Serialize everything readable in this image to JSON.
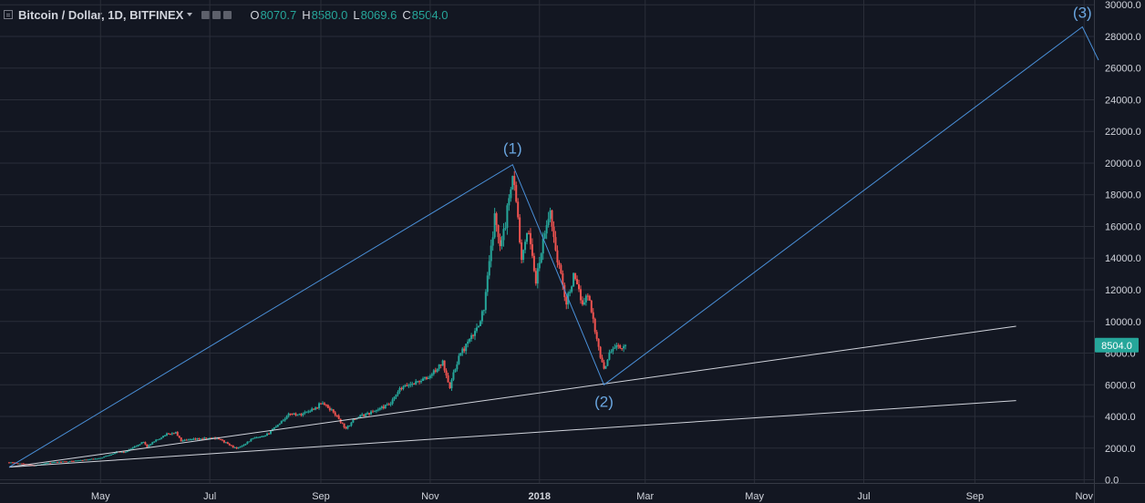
{
  "header": {
    "symbol": "Bitcoin / Dollar, 1D, BITFINEX",
    "ohlc": {
      "o_label": "O",
      "o_value": "8070.7",
      "h_label": "H",
      "h_value": "8580.0",
      "l_label": "L",
      "l_value": "8069.6",
      "c_label": "C",
      "c_value": "8504.0"
    }
  },
  "colors": {
    "background": "#131722",
    "grid": "#2a2e39",
    "up": "#26a69a",
    "down": "#ef5350",
    "wave": "#4a90d9",
    "trendline": "#d1d4dc",
    "axis_text": "#d1d4dc",
    "price_badge": "#26a69a"
  },
  "chart_data": {
    "type": "candlestick",
    "symbol": "Bitcoin / Dollar",
    "interval": "1D",
    "exchange": "BITFINEX",
    "ohlc_last": {
      "open": 8070.7,
      "high": 8580.0,
      "low": 8069.6,
      "close": 8504.0
    },
    "last_price_label": "8504.0",
    "x_ticks": [
      "May",
      "Jul",
      "Sep",
      "Nov",
      "2018",
      "Mar",
      "May",
      "Jul",
      "Sep",
      "Nov"
    ],
    "y_ticks": [
      "0.0",
      "2000.0",
      "4000.0",
      "6000.0",
      "8000.0",
      "10000.0",
      "12000.0",
      "14000.0",
      "16000.0",
      "18000.0",
      "20000.0",
      "22000.0",
      "24000.0",
      "26000.0",
      "28000.0",
      "30000.0"
    ],
    "ylim": [
      -200,
      30300
    ],
    "price_series": {
      "start": "2017-03-11",
      "end": "2018-02-18",
      "points": [
        [
          "2017-03-11",
          1100
        ],
        [
          "2017-03-20",
          1000
        ],
        [
          "2017-03-25",
          900
        ],
        [
          "2017-04-01",
          1070
        ],
        [
          "2017-04-15",
          1180
        ],
        [
          "2017-04-30",
          1340
        ],
        [
          "2017-05-10",
          1750
        ],
        [
          "2017-05-15",
          1750
        ],
        [
          "2017-05-25",
          2400
        ],
        [
          "2017-05-27",
          2100
        ],
        [
          "2017-06-06",
          2850
        ],
        [
          "2017-06-12",
          2980
        ],
        [
          "2017-06-15",
          2450
        ],
        [
          "2017-06-25",
          2580
        ],
        [
          "2017-07-05",
          2650
        ],
        [
          "2017-07-16",
          1950
        ],
        [
          "2017-07-25",
          2600
        ],
        [
          "2017-08-01",
          2750
        ],
        [
          "2017-08-05",
          3200
        ],
        [
          "2017-08-15",
          4200
        ],
        [
          "2017-08-20",
          4100
        ],
        [
          "2017-08-30",
          4600
        ],
        [
          "2017-09-01",
          4900
        ],
        [
          "2017-09-08",
          4300
        ],
        [
          "2017-09-15",
          3200
        ],
        [
          "2017-09-20",
          3900
        ],
        [
          "2017-09-30",
          4300
        ],
        [
          "2017-10-10",
          4800
        ],
        [
          "2017-10-15",
          5700
        ],
        [
          "2017-10-20",
          6000
        ],
        [
          "2017-10-31",
          6450
        ],
        [
          "2017-11-08",
          7400
        ],
        [
          "2017-11-12",
          5900
        ],
        [
          "2017-11-17",
          7800
        ],
        [
          "2017-11-26",
          9300
        ],
        [
          "2017-12-01",
          10800
        ],
        [
          "2017-12-07",
          16500
        ],
        [
          "2017-12-10",
          15000
        ],
        [
          "2017-12-13",
          16200
        ],
        [
          "2017-12-17",
          19500
        ],
        [
          "2017-12-20",
          16500
        ],
        [
          "2017-12-22",
          13800
        ],
        [
          "2017-12-26",
          15800
        ],
        [
          "2017-12-30",
          12500
        ],
        [
          "2018-01-03",
          15000
        ],
        [
          "2018-01-07",
          17000
        ],
        [
          "2018-01-10",
          14500
        ],
        [
          "2018-01-16",
          11200
        ],
        [
          "2018-01-20",
          12800
        ],
        [
          "2018-01-25",
          11200
        ],
        [
          "2018-01-28",
          11700
        ],
        [
          "2018-01-31",
          10200
        ],
        [
          "2018-02-02",
          8800
        ],
        [
          "2018-02-06",
          6900
        ],
        [
          "2018-02-09",
          8100
        ],
        [
          "2018-02-13",
          8500
        ],
        [
          "2018-02-16",
          8200
        ],
        [
          "2018-02-18",
          8504
        ]
      ]
    },
    "annotations": {
      "wave_lines": [
        [
          "2017-03-11",
          800
        ],
        [
          "2017-12-17",
          19900
        ],
        [
          "2018-02-06",
          6000
        ],
        [
          "2018-10-31",
          28600
        ],
        [
          "2018-11-09",
          26500
        ]
      ],
      "wave_labels": [
        {
          "text": "(1)",
          "date": "2017-12-17",
          "price": 19900
        },
        {
          "text": "(2)",
          "date": "2018-02-06",
          "price": 6000
        },
        {
          "text": "(3)",
          "date": "2018-10-31",
          "price": 28600
        }
      ],
      "trendlines": [
        {
          "from": [
            "2017-03-11",
            800
          ],
          "to": [
            "2018-09-24",
            9700
          ]
        },
        {
          "from": [
            "2017-03-11",
            800
          ],
          "to": [
            "2018-09-24",
            5000
          ]
        }
      ]
    }
  }
}
